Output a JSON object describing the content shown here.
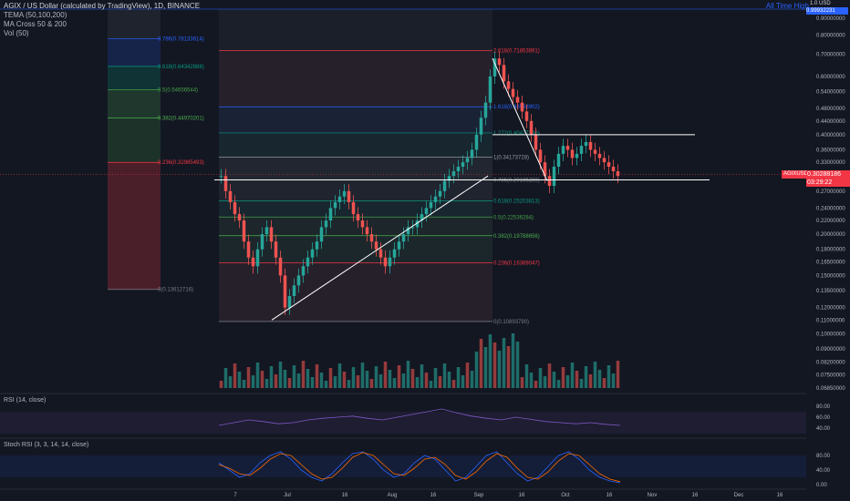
{
  "header": {
    "symbol_line": "AGIX / US Dollar (calculated by TradingView), 1D, BINANCE",
    "ind1": "TEMA (50,100,200)",
    "ind2": "MA Cross 50 & 200",
    "ind3": "Vol (50)",
    "all_time_high": "All Time High"
  },
  "price_tag": {
    "symbol": "AGIXUSD",
    "price": "0.30288186",
    "countdown": "03:29:22"
  },
  "top_tag": {
    "usd": "1.0 USD",
    "value": "0.99932231"
  },
  "rsi_title": "RSI (14, close)",
  "stoch_title": "Stoch RSI (3, 3, 14, 14, close)",
  "colors": {
    "bg": "#131722",
    "up": "#26a69a",
    "down": "#ef5350",
    "accent": "#2962ff"
  },
  "chart_data": {
    "type": "candlestick",
    "symbol": "AGIX / US Dollar",
    "timeframe": "1D",
    "exchange": "BINANCE",
    "price_axis_scale": "log",
    "price_axis_ticks": [
      "0.90000000",
      "0.80000000",
      "0.70000000",
      "0.60000000",
      "0.54000000",
      "0.48000000",
      "0.44000000",
      "0.40000000",
      "0.36000000",
      "0.33000000",
      "0.30000000",
      "0.27000000",
      "0.24000000",
      "0.22000000",
      "0.20000000",
      "0.18000000",
      "0.16500000",
      "0.15000000",
      "0.13500000",
      "0.12000000",
      "0.11000000",
      "0.10000000",
      "0.09000000",
      "0.08200000",
      "0.07500000",
      "0.06850000"
    ],
    "time_axis_ticks": [
      "7",
      "Jul",
      "16",
      "Aug",
      "16",
      "Sep",
      "16",
      "Oct",
      "16",
      "Nov",
      "16",
      "Dec",
      "16"
    ],
    "last_price": 0.30288186,
    "close_series": [
      0.3,
      0.27,
      0.25,
      0.23,
      0.22,
      0.19,
      0.17,
      0.16,
      0.18,
      0.2,
      0.21,
      0.19,
      0.17,
      0.15,
      0.12,
      0.13,
      0.14,
      0.15,
      0.16,
      0.17,
      0.18,
      0.19,
      0.21,
      0.22,
      0.24,
      0.25,
      0.26,
      0.27,
      0.25,
      0.23,
      0.22,
      0.21,
      0.2,
      0.19,
      0.18,
      0.17,
      0.16,
      0.17,
      0.18,
      0.19,
      0.2,
      0.21,
      0.21,
      0.22,
      0.23,
      0.24,
      0.25,
      0.26,
      0.27,
      0.29,
      0.3,
      0.31,
      0.32,
      0.33,
      0.34,
      0.36,
      0.4,
      0.45,
      0.5,
      0.6,
      0.68,
      0.65,
      0.58,
      0.55,
      0.52,
      0.5,
      0.47,
      0.44,
      0.4,
      0.36,
      0.33,
      0.3,
      0.28,
      0.32,
      0.35,
      0.37,
      0.36,
      0.34,
      0.35,
      0.37,
      0.38,
      0.36,
      0.35,
      0.34,
      0.33,
      0.32,
      0.31,
      0.3
    ],
    "fib_left": [
      {
        "level": "0.786",
        "price": "0.78133614"
      },
      {
        "level": "0.618",
        "price": "0.64342888"
      },
      {
        "level": "0.5",
        "price": "0.54656544"
      },
      {
        "level": "0.382",
        "price": "0.44970201"
      },
      {
        "level": "0.236",
        "price": "0.32985493"
      },
      {
        "level": "0",
        "price": "0.13612716"
      }
    ],
    "fib_right": [
      {
        "level": "2.618",
        "price": "0.71853891"
      },
      {
        "level": "1.618",
        "price": "0.48568902"
      },
      {
        "level": "1.272",
        "price": "0.40477296"
      },
      {
        "level": "1",
        "price": "0.34173728"
      },
      {
        "level": "0.786",
        "price": "0.29195289"
      },
      {
        "level": "0.618",
        "price": "0.25203813"
      },
      {
        "level": "0.5",
        "price": "0.22536284"
      },
      {
        "level": "0.382",
        "price": "0.19788656"
      },
      {
        "level": "0.236",
        "price": "0.16389047"
      },
      {
        "level": "0",
        "price": "0.10893790"
      }
    ],
    "rsi": {
      "ticks": [
        "80.00",
        "60.00",
        "40.00"
      ],
      "values": [
        45,
        50,
        55,
        52,
        48,
        50,
        55,
        58,
        60,
        62,
        58,
        55,
        60,
        65,
        70,
        75,
        68,
        62,
        58,
        55,
        60,
        56,
        52,
        50,
        48,
        50,
        47,
        45
      ]
    },
    "stoch_rsi": {
      "ticks": [
        "80.00",
        "40.00",
        "0.00"
      ],
      "k": [
        60,
        40,
        20,
        30,
        60,
        80,
        90,
        70,
        40,
        20,
        10,
        30,
        60,
        85,
        90,
        70,
        40,
        20,
        30,
        60,
        80,
        70,
        40,
        10,
        20,
        50,
        80,
        90,
        60,
        30,
        10,
        20,
        50,
        80,
        90,
        70,
        40,
        20,
        10,
        5
      ],
      "d": [
        55,
        45,
        30,
        25,
        45,
        70,
        85,
        80,
        55,
        30,
        15,
        20,
        45,
        75,
        88,
        80,
        55,
        30,
        25,
        45,
        70,
        75,
        55,
        25,
        15,
        35,
        65,
        85,
        75,
        45,
        20,
        15,
        35,
        65,
        85,
        80,
        55,
        30,
        15,
        8
      ]
    }
  }
}
